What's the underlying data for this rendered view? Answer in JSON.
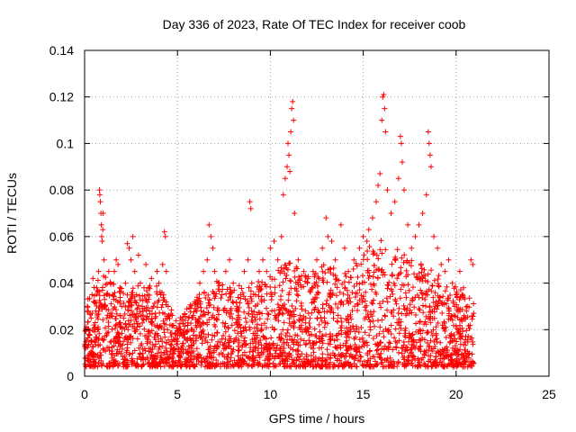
{
  "chart_data": {
    "type": "scatter",
    "title": "Day 336 of 2023, Rate Of TEC Index for receiver coob",
    "xlabel": "GPS time / hours",
    "ylabel": "ROTI / TECUs",
    "xlim": [
      0,
      25
    ],
    "ylim": [
      0,
      0.14
    ],
    "grid": true,
    "marker": "+",
    "color": "#ff0000",
    "xticks": [
      0,
      5,
      10,
      15,
      20,
      25
    ],
    "xtick_labels": [
      "0",
      "5",
      "10",
      "15",
      "20",
      "25"
    ],
    "yticks": [
      0,
      0.02,
      0.04,
      0.06,
      0.08,
      0.1,
      0.12,
      0.14
    ],
    "ytick_labels": [
      "0",
      "0.02",
      "0.04",
      "0.06",
      "0.08",
      "0.1",
      "0.12",
      "0.14"
    ],
    "series": [
      {
        "points": [
          [
            0.05,
            0.012
          ],
          [
            0.1,
            0.02
          ],
          [
            0.15,
            0.03
          ],
          [
            0.2,
            0.028
          ],
          [
            0.25,
            0.018
          ],
          [
            0.3,
            0.01
          ],
          [
            0.35,
            0.025
          ],
          [
            0.4,
            0.035
          ],
          [
            0.45,
            0.042
          ],
          [
            0.5,
            0.022
          ],
          [
            0.55,
            0.015
          ],
          [
            0.6,
            0.028
          ],
          [
            0.65,
            0.038
          ],
          [
            0.7,
            0.02
          ],
          [
            0.75,
            0.045
          ],
          [
            0.8,
            0.08
          ],
          [
            0.82,
            0.078
          ],
          [
            0.85,
            0.075
          ],
          [
            0.88,
            0.07
          ],
          [
            0.9,
            0.065
          ],
          [
            0.92,
            0.06
          ],
          [
            0.95,
            0.058
          ],
          [
            0.98,
            0.063
          ],
          [
            1.0,
            0.07
          ],
          [
            1.05,
            0.05
          ],
          [
            1.1,
            0.03
          ],
          [
            1.2,
            0.025
          ],
          [
            1.3,
            0.045
          ],
          [
            1.4,
            0.04
          ],
          [
            1.5,
            0.035
          ],
          [
            1.6,
            0.045
          ],
          [
            1.7,
            0.05
          ],
          [
            1.8,
            0.048
          ],
          [
            1.9,
            0.038
          ],
          [
            2.0,
            0.03
          ],
          [
            2.1,
            0.025
          ],
          [
            2.2,
            0.04
          ],
          [
            2.3,
            0.057
          ],
          [
            2.4,
            0.055
          ],
          [
            2.5,
            0.05
          ],
          [
            2.6,
            0.06
          ],
          [
            2.7,
            0.045
          ],
          [
            2.8,
            0.035
          ],
          [
            2.9,
            0.052
          ],
          [
            3.0,
            0.04
          ],
          [
            3.1,
            0.03
          ],
          [
            3.2,
            0.038
          ],
          [
            3.3,
            0.048
          ],
          [
            3.4,
            0.035
          ],
          [
            3.5,
            0.028
          ],
          [
            3.6,
            0.042
          ],
          [
            3.7,
            0.03
          ],
          [
            3.8,
            0.025
          ],
          [
            3.9,
            0.045
          ],
          [
            4.0,
            0.04
          ],
          [
            4.1,
            0.035
          ],
          [
            4.2,
            0.048
          ],
          [
            4.3,
            0.062
          ],
          [
            4.35,
            0.06
          ],
          [
            4.4,
            0.045
          ],
          [
            4.5,
            0.03
          ],
          [
            4.6,
            0.022
          ],
          [
            4.7,
            0.015
          ],
          [
            4.8,
            0.012
          ],
          [
            5.0,
            0.015
          ],
          [
            5.2,
            0.012
          ],
          [
            5.4,
            0.018
          ],
          [
            5.6,
            0.025
          ],
          [
            5.8,
            0.02
          ],
          [
            6.0,
            0.028
          ],
          [
            6.2,
            0.04
          ],
          [
            6.4,
            0.045
          ],
          [
            6.6,
            0.05
          ],
          [
            6.7,
            0.065
          ],
          [
            6.8,
            0.06
          ],
          [
            6.9,
            0.055
          ],
          [
            7.0,
            0.045
          ],
          [
            7.2,
            0.04
          ],
          [
            7.4,
            0.035
          ],
          [
            7.6,
            0.045
          ],
          [
            7.8,
            0.05
          ],
          [
            8.0,
            0.04
          ],
          [
            8.2,
            0.03
          ],
          [
            8.4,
            0.035
          ],
          [
            8.6,
            0.045
          ],
          [
            8.8,
            0.05
          ],
          [
            8.9,
            0.075
          ],
          [
            8.95,
            0.072
          ],
          [
            9.0,
            0.04
          ],
          [
            9.2,
            0.035
          ],
          [
            9.4,
            0.045
          ],
          [
            9.6,
            0.05
          ],
          [
            9.8,
            0.045
          ],
          [
            10.0,
            0.055
          ],
          [
            10.2,
            0.058
          ],
          [
            10.4,
            0.05
          ],
          [
            10.6,
            0.06
          ],
          [
            10.7,
            0.078
          ],
          [
            10.8,
            0.085
          ],
          [
            10.9,
            0.09
          ],
          [
            10.95,
            0.1
          ],
          [
            11.0,
            0.095
          ],
          [
            11.05,
            0.088
          ],
          [
            11.1,
            0.105
          ],
          [
            11.15,
            0.115
          ],
          [
            11.2,
            0.118
          ],
          [
            11.25,
            0.11
          ],
          [
            11.3,
            0.07
          ],
          [
            11.5,
            0.05
          ],
          [
            11.8,
            0.045
          ],
          [
            12.0,
            0.04
          ],
          [
            12.3,
            0.045
          ],
          [
            12.5,
            0.05
          ],
          [
            12.8,
            0.055
          ],
          [
            13.0,
            0.068
          ],
          [
            13.1,
            0.06
          ],
          [
            13.3,
            0.058
          ],
          [
            13.5,
            0.05
          ],
          [
            13.8,
            0.065
          ],
          [
            14.0,
            0.055
          ],
          [
            14.2,
            0.045
          ],
          [
            14.5,
            0.05
          ],
          [
            14.8,
            0.055
          ],
          [
            15.0,
            0.06
          ],
          [
            15.2,
            0.058
          ],
          [
            15.3,
            0.063
          ],
          [
            15.5,
            0.068
          ],
          [
            15.7,
            0.075
          ],
          [
            15.8,
            0.082
          ],
          [
            15.9,
            0.087
          ],
          [
            16.0,
            0.11
          ],
          [
            16.05,
            0.12
          ],
          [
            16.1,
            0.121
          ],
          [
            16.15,
            0.115
          ],
          [
            16.2,
            0.105
          ],
          [
            16.3,
            0.08
          ],
          [
            16.5,
            0.07
          ],
          [
            16.7,
            0.075
          ],
          [
            16.9,
            0.085
          ],
          [
            17.0,
            0.103
          ],
          [
            17.05,
            0.1
          ],
          [
            17.1,
            0.092
          ],
          [
            17.2,
            0.08
          ],
          [
            17.4,
            0.065
          ],
          [
            17.6,
            0.055
          ],
          [
            17.8,
            0.06
          ],
          [
            18.0,
            0.065
          ],
          [
            18.2,
            0.07
          ],
          [
            18.4,
            0.078
          ],
          [
            18.5,
            0.105
          ],
          [
            18.55,
            0.1
          ],
          [
            18.6,
            0.095
          ],
          [
            18.65,
            0.09
          ],
          [
            18.8,
            0.06
          ],
          [
            19.0,
            0.055
          ],
          [
            19.2,
            0.048
          ],
          [
            19.4,
            0.045
          ],
          [
            19.6,
            0.05
          ],
          [
            19.8,
            0.04
          ],
          [
            20.0,
            0.035
          ],
          [
            20.2,
            0.045
          ],
          [
            20.4,
            0.038
          ],
          [
            20.6,
            0.03
          ],
          [
            20.8,
            0.05
          ],
          [
            20.9,
            0.048
          ]
        ]
      }
    ]
  }
}
